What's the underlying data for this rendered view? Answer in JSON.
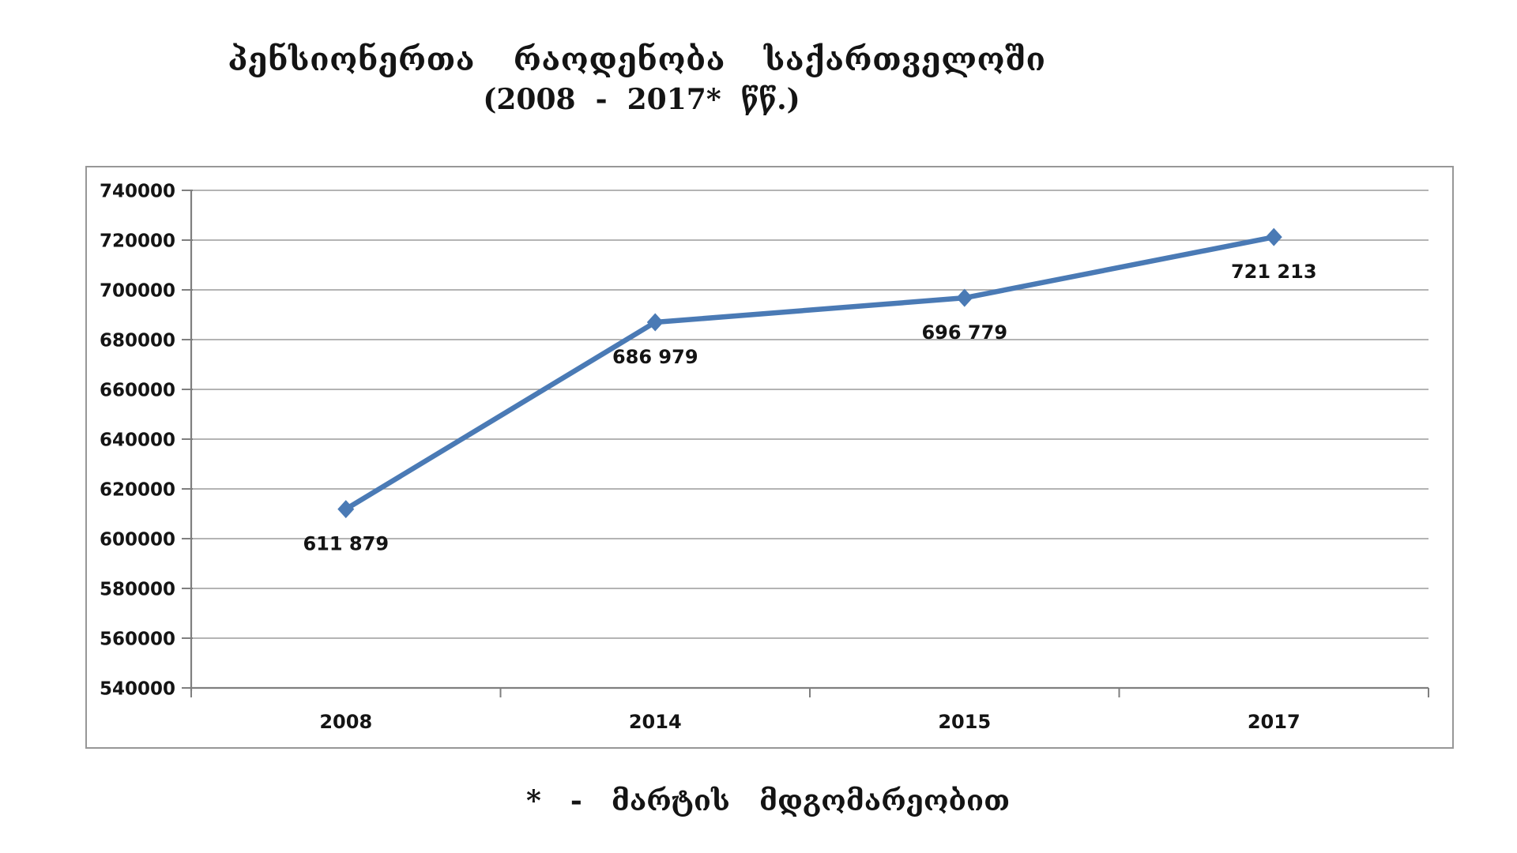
{
  "page": {
    "title_line1": "პენსიონერთა  რაოდენობა  საქართველოში",
    "title_line2": "(2008  -  2017*  წწ.)",
    "footnote": "*  -  მარტის  მდგომარეობით"
  },
  "chart_data": {
    "type": "line",
    "title": "პენსიონერთა რაოდენობა საქართველოში",
    "subtitle": "(2008 - 2017* წწ.)",
    "footnote": "* - მარტის მდგომარეობით",
    "categories": [
      "2008",
      "2014",
      "2015",
      "2017"
    ],
    "values": [
      611879,
      686979,
      696779,
      721213
    ],
    "value_labels": [
      "611 879",
      "686 979",
      "696 779",
      "721 213"
    ],
    "xlabel": "",
    "ylabel": "",
    "ylim": [
      540000,
      740000
    ],
    "ytick_step": 20000,
    "ytick_labels": [
      "740000",
      "720000",
      "700000",
      "680000",
      "660000",
      "640000",
      "620000",
      "600000",
      "580000",
      "560000",
      "540000"
    ],
    "grid": true,
    "legend": false,
    "marker": "diamond",
    "line_color": "#4a7ab5",
    "grid_color": "#9c9c9c",
    "axis_color": "#7f7f7f",
    "text_color": "#141414"
  }
}
